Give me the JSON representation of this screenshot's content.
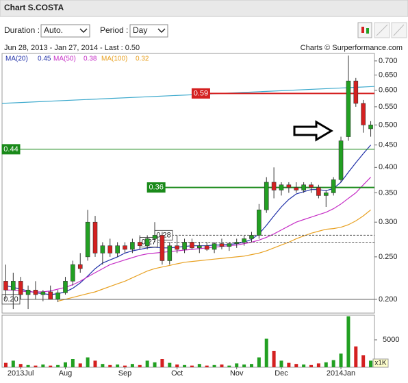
{
  "header": {
    "title": "Chart S.COSTA",
    "duration_label": "Duration :",
    "duration": "Auto.",
    "period_label": "Period :",
    "period": "Day"
  },
  "chart_data": {
    "type": "candlestick",
    "subtitle": "Jun 28, 2013 - Jan 27, 2014 - Last : 0.50",
    "source": "Charts © Surperformance.com",
    "log_scale": true,
    "up_color": "#22a022",
    "down_color": "#d42020",
    "categories": [
      null,
      null,
      "2013Jul",
      null,
      null,
      null,
      null,
      null,
      "Aug",
      null,
      null,
      null,
      null,
      null,
      null,
      null,
      "Sep",
      null,
      null,
      null,
      null,
      null,
      null,
      "Oct",
      null,
      null,
      null,
      null,
      null,
      null,
      null,
      "Nov",
      null,
      null,
      null,
      null,
      null,
      "Dec",
      null,
      null,
      null,
      null,
      null,
      null,
      null,
      "2014Jan",
      null,
      null,
      null,
      null
    ],
    "open": [
      0.22,
      0.21,
      0.22,
      0.205,
      0.21,
      0.205,
      0.208,
      0.2,
      0.207,
      0.22,
      0.24,
      0.25,
      0.3,
      0.255,
      0.265,
      0.255,
      0.265,
      0.26,
      0.27,
      0.265,
      0.275,
      0.28,
      0.245,
      0.265,
      0.26,
      0.27,
      0.262,
      0.265,
      0.26,
      0.268,
      0.264,
      0.268,
      0.27,
      0.275,
      0.28,
      0.32,
      0.37,
      0.355,
      0.365,
      0.36,
      0.355,
      0.365,
      0.36,
      0.345,
      0.35,
      0.375,
      0.47,
      0.63,
      0.56,
      0.49
    ],
    "high": [
      0.24,
      0.23,
      0.225,
      0.215,
      0.22,
      0.21,
      0.215,
      0.21,
      0.225,
      0.245,
      0.255,
      0.32,
      0.31,
      0.27,
      0.275,
      0.27,
      0.27,
      0.275,
      0.28,
      0.28,
      0.3,
      0.285,
      0.27,
      0.28,
      0.275,
      0.275,
      0.27,
      0.27,
      0.27,
      0.275,
      0.27,
      0.275,
      0.28,
      0.285,
      0.33,
      0.38,
      0.4,
      0.37,
      0.37,
      0.37,
      0.37,
      0.37,
      0.365,
      0.355,
      0.38,
      0.47,
      0.72,
      0.64,
      0.57,
      0.51
    ],
    "low": [
      0.2,
      0.19,
      0.2,
      0.19,
      0.2,
      0.198,
      0.2,
      0.197,
      0.205,
      0.215,
      0.23,
      0.245,
      0.25,
      0.24,
      0.25,
      0.25,
      0.255,
      0.255,
      0.26,
      0.26,
      0.27,
      0.24,
      0.24,
      0.255,
      0.255,
      0.26,
      0.255,
      0.258,
      0.255,
      0.26,
      0.258,
      0.262,
      0.265,
      0.27,
      0.275,
      0.315,
      0.34,
      0.345,
      0.35,
      0.35,
      0.35,
      0.35,
      0.34,
      0.325,
      0.345,
      0.37,
      0.46,
      0.55,
      0.48,
      0.47
    ],
    "close": [
      0.21,
      0.22,
      0.205,
      0.21,
      0.205,
      0.208,
      0.2,
      0.207,
      0.22,
      0.24,
      0.235,
      0.3,
      0.255,
      0.265,
      0.255,
      0.265,
      0.26,
      0.27,
      0.265,
      0.275,
      0.28,
      0.245,
      0.265,
      0.26,
      0.27,
      0.262,
      0.265,
      0.26,
      0.268,
      0.264,
      0.268,
      0.27,
      0.275,
      0.28,
      0.32,
      0.37,
      0.355,
      0.365,
      0.36,
      0.355,
      0.365,
      0.36,
      0.345,
      0.35,
      0.375,
      0.46,
      0.63,
      0.56,
      0.5,
      0.5
    ],
    "ma": [
      {
        "name": "MA(20)",
        "color": "#1f2fa8",
        "last": 0.45,
        "values": [
          0.215,
          0.213,
          0.211,
          0.209,
          0.207,
          0.206,
          0.205,
          0.206,
          0.208,
          0.212,
          0.218,
          0.226,
          0.235,
          0.242,
          0.246,
          0.25,
          0.255,
          0.258,
          0.26,
          0.262,
          0.263,
          0.262,
          0.262,
          0.263,
          0.264,
          0.265,
          0.265,
          0.265,
          0.266,
          0.266,
          0.267,
          0.268,
          0.27,
          0.274,
          0.282,
          0.295,
          0.31,
          0.325,
          0.338,
          0.348,
          0.352,
          0.356,
          0.356,
          0.354,
          0.358,
          0.37,
          0.39,
          0.41,
          0.43,
          0.45
        ]
      },
      {
        "name": "MA(50)",
        "color": "#c62ec6",
        "last": 0.38,
        "values": [
          0.21,
          0.21,
          0.209,
          0.208,
          0.208,
          0.208,
          0.209,
          0.211,
          0.213,
          0.216,
          0.22,
          0.225,
          0.23,
          0.235,
          0.24,
          0.243,
          0.246,
          0.249,
          0.252,
          0.254,
          0.255,
          0.256,
          0.257,
          0.258,
          0.259,
          0.26,
          0.261,
          0.262,
          0.263,
          0.264,
          0.265,
          0.266,
          0.268,
          0.27,
          0.273,
          0.277,
          0.282,
          0.288,
          0.294,
          0.3,
          0.304,
          0.308,
          0.312,
          0.316,
          0.322,
          0.33,
          0.34,
          0.35,
          0.365,
          0.38
        ]
      },
      {
        "name": "MA(100)",
        "color": "#e8a020",
        "last": 0.32,
        "values": [
          null,
          null,
          null,
          null,
          null,
          null,
          null,
          0.198,
          0.2,
          0.202,
          0.204,
          0.206,
          0.208,
          0.211,
          0.214,
          0.217,
          0.22,
          0.224,
          0.228,
          0.232,
          0.235,
          0.237,
          0.239,
          0.241,
          0.243,
          0.244,
          0.245,
          0.246,
          0.247,
          0.248,
          0.249,
          0.25,
          0.251,
          0.253,
          0.255,
          0.258,
          0.262,
          0.266,
          0.27,
          0.275,
          0.279,
          0.283,
          0.286,
          0.289,
          0.29,
          0.292,
          0.296,
          0.302,
          0.31,
          0.32
        ]
      }
    ],
    "trendline": {
      "values": [
        0.56,
        0.612
      ],
      "color": "#3aa8cc"
    },
    "levels": [
      {
        "value": 0.59,
        "label": "0.59",
        "color": "#d42020",
        "width": 2,
        "filled": true,
        "from": 25
      },
      {
        "value": 0.44,
        "label": "0.44",
        "color": "#1a8a1a",
        "width": 1,
        "filled": true,
        "from": 0
      },
      {
        "value": 0.36,
        "label": "0.36",
        "color": "#1a8a1a",
        "width": 2,
        "filled": true,
        "from": 19
      },
      {
        "value": 0.28,
        "label": "0.28",
        "color": "#555555",
        "width": 1,
        "filled": false,
        "dashed": true,
        "from": 20
      },
      {
        "value": 0.27,
        "label": "0.27",
        "color": "#555555",
        "width": 1,
        "filled": false,
        "dashed": true,
        "from": 18
      },
      {
        "value": 0.2,
        "label": "0.20",
        "color": "#555555",
        "width": 1,
        "filled": false,
        "from": 0
      }
    ],
    "ylim": [
      0.186,
      0.728
    ],
    "yticks": [
      {
        "value": 0.7,
        "label": "0.700"
      },
      {
        "value": 0.65,
        "label": "0.650"
      },
      {
        "value": 0.6,
        "label": "0.600"
      },
      {
        "value": 0.55,
        "label": "0.550"
      },
      {
        "value": 0.5,
        "label": "0.500"
      },
      {
        "value": 0.45,
        "label": "0.450"
      },
      {
        "value": 0.4,
        "label": "0.400"
      },
      {
        "value": 0.35,
        "label": "0.350"
      },
      {
        "value": 0.3,
        "label": "0.300"
      },
      {
        "value": 0.25,
        "label": "0.250"
      },
      {
        "value": 0.2,
        "label": "0.200"
      }
    ],
    "volume": {
      "unit": "x1K",
      "ylim": [
        0,
        9500
      ],
      "yticks": [
        5000
      ],
      "values": [
        800,
        1200,
        600,
        400,
        300,
        500,
        300,
        400,
        900,
        1500,
        700,
        1800,
        1200,
        600,
        400,
        500,
        300,
        600,
        400,
        1200,
        900,
        1500,
        800,
        500,
        400,
        300,
        600,
        300,
        400,
        500,
        300,
        700,
        500,
        600,
        1800,
        5200,
        3000,
        1200,
        800,
        600,
        500,
        400,
        700,
        900,
        1300,
        2500,
        9300,
        3800,
        2200,
        1200
      ]
    }
  }
}
